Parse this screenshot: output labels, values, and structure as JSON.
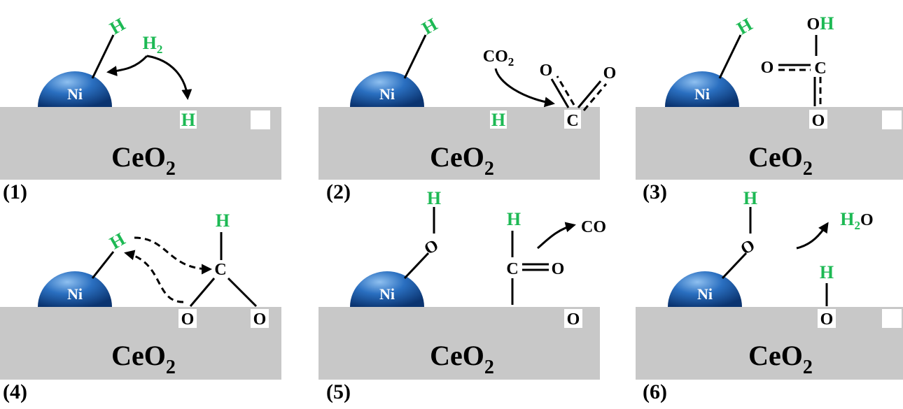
{
  "support_label": "CeO",
  "support_subscript": "2",
  "metal_label": "Ni",
  "panels": [
    {
      "label": "(1)",
      "h2": "H",
      "h2_sub": "2"
    },
    {
      "label": "(2)",
      "co2": "CO",
      "co2_sub": "2"
    },
    {
      "label": "(3)"
    },
    {
      "label": "(4)"
    },
    {
      "label": "(5)",
      "product": "CO"
    },
    {
      "label": "(6)",
      "product": "H",
      "product_sub": "2",
      "product_tail": "O"
    }
  ],
  "atoms": {
    "H": "H",
    "O": "O",
    "C": "C"
  },
  "colors": {
    "support": "#c8c8c8",
    "metal": "#1f5fa8",
    "hydrogen": "#1db954",
    "vacancy": "#ffffff"
  }
}
